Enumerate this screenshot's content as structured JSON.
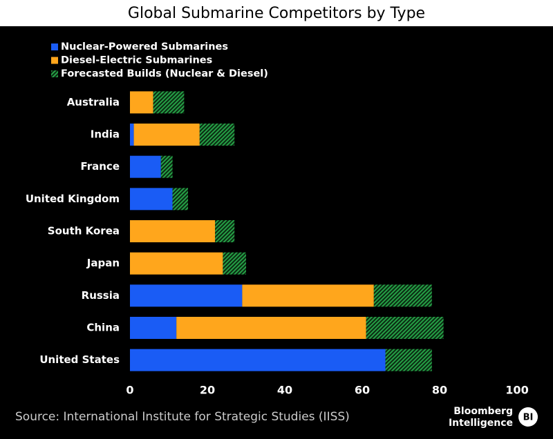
{
  "chart_data": {
    "type": "stacked-barh",
    "title": "Global Submarine Competitors by Type",
    "categories": [
      "Australia",
      "India",
      "France",
      "United Kingdom",
      "South Korea",
      "Japan",
      "Russia",
      "China",
      "United States"
    ],
    "series": [
      {
        "name": "Nuclear-Powered Submarines",
        "color": "#1a5cf5",
        "values": [
          0,
          1,
          8,
          11,
          0,
          0,
          29,
          12,
          66
        ]
      },
      {
        "name": "Diesel-Electric Submarines",
        "color": "#ffa61c",
        "values": [
          6,
          17,
          0,
          0,
          22,
          24,
          34,
          49,
          0
        ]
      },
      {
        "name": "Forecasted Builds (Nuclear & Diesel)",
        "color": "#25a046",
        "pattern": "hatch",
        "values": [
          8,
          9,
          3,
          4,
          5,
          6,
          15,
          20,
          12
        ]
      }
    ],
    "xlim": [
      0,
      100
    ],
    "xticks": [
      0,
      20,
      40,
      60,
      80,
      100
    ],
    "source": "Source: International Institute for Strategic Studies (IISS)",
    "brand": {
      "line1": "Bloomberg",
      "line2": "Intelligence",
      "badge": "BI"
    }
  }
}
